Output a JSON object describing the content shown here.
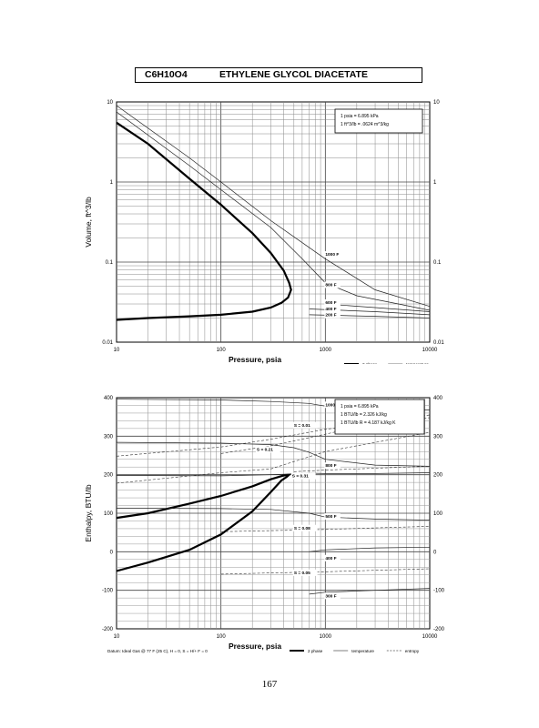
{
  "page": {
    "formula": "C6H10O4",
    "compound": "ETHYLENE GLYCOL DIACETATE",
    "page_number": "167"
  },
  "chart_data": [
    {
      "type": "line",
      "xlabel": "Pressure,  psia",
      "ylabel": "Volume, ft^3/lb",
      "xscale": "log",
      "yscale": "log",
      "xlim": [
        10,
        10000
      ],
      "ylim": [
        0.01,
        10
      ],
      "x_ticks": [
        "10",
        "100",
        "1000",
        "10000"
      ],
      "y_ticks": [
        "0.01",
        "0.1",
        "1",
        "10"
      ],
      "grid": true,
      "notes": [
        "1 psia = 6.895 kPa",
        "1 ft^3/lb = .0624 m^3/kg"
      ],
      "legend": [
        {
          "label": "2 phase",
          "style": "thick"
        },
        {
          "label": "temperature",
          "style": "thin"
        }
      ],
      "series": [
        {
          "kind": "2 phase",
          "x": [
            10,
            20,
            50,
            100,
            200,
            300,
            400,
            450,
            470,
            440,
            380,
            300,
            200,
            100,
            50,
            20,
            10
          ],
          "y": [
            5.5,
            3.0,
            1.1,
            0.52,
            0.23,
            0.13,
            0.078,
            0.055,
            0.045,
            0.036,
            0.031,
            0.027,
            0.024,
            0.022,
            0.021,
            0.02,
            0.019
          ]
        },
        {
          "name": "1000 F",
          "x": [
            10,
            50,
            100,
            300,
            1000,
            3000,
            10000
          ],
          "y": [
            9.0,
            2.0,
            1.0,
            0.33,
            0.11,
            0.045,
            0.028
          ]
        },
        {
          "name": "800 F",
          "x": [
            10,
            50,
            100,
            300,
            600,
            1000,
            2000,
            5000,
            10000
          ],
          "y": [
            7.5,
            1.6,
            0.8,
            0.27,
            0.11,
            0.055,
            0.038,
            0.03,
            0.025
          ]
        },
        {
          "name": "600 F",
          "x": [
            1000,
            3000,
            10000
          ],
          "y": [
            0.03,
            0.027,
            0.024
          ]
        },
        {
          "name": "400 F",
          "x": [
            700,
            3000,
            10000
          ],
          "y": [
            0.026,
            0.024,
            0.022
          ]
        },
        {
          "name": "200 F",
          "x": [
            700,
            3000,
            10000
          ],
          "y": [
            0.022,
            0.021,
            0.02
          ]
        }
      ],
      "annotations": [
        {
          "text": "1000 F",
          "x": 1000,
          "y": 0.12
        },
        {
          "text": "800 F",
          "x": 1000,
          "y": 0.05
        },
        {
          "text": "600 F",
          "x": 1000,
          "y": 0.03
        },
        {
          "text": "400 F",
          "x": 1000,
          "y": 0.025
        },
        {
          "text": "200 F",
          "x": 1000,
          "y": 0.021
        }
      ]
    },
    {
      "type": "line",
      "xlabel": "Pressure,  psia",
      "ylabel": "Enthalpy, BTU/lb",
      "xscale": "log",
      "xlim": [
        10,
        10000
      ],
      "ylim": [
        -200,
        400
      ],
      "x_ticks": [
        "10",
        "100",
        "1000",
        "10000"
      ],
      "y_ticks": [
        "-200",
        "-100",
        "0",
        "100",
        "200",
        "300",
        "400"
      ],
      "grid": true,
      "notes": [
        "1 psia = 6.895 kPa",
        "1 BTU/lb = 2.326 kJ/kg",
        "1 BTU/lb R = 4.187 kJ/kg K"
      ],
      "datum": "Datum: Ideal Gas @ 77 F (25 C), H = 0, S = H/+ F = 0",
      "legend": [
        {
          "label": "2 phase",
          "style": "thick"
        },
        {
          "label": "temperature",
          "style": "thin"
        },
        {
          "label": "entropy",
          "style": "dashed"
        }
      ],
      "series": [
        {
          "kind": "2 phase",
          "x": [
            10,
            20,
            50,
            100,
            200,
            300,
            400,
            450,
            430,
            380,
            300,
            200,
            100,
            50,
            20,
            10
          ],
          "y": [
            88,
            100,
            125,
            145,
            170,
            188,
            198,
            200,
            195,
            185,
            155,
            105,
            45,
            5,
            -28,
            -50
          ]
        },
        {
          "name": "1000 F",
          "x": [
            10,
            100,
            300,
            700,
            1000,
            3000,
            10000
          ],
          "y": [
            396,
            394,
            390,
            385,
            378,
            372,
            368
          ]
        },
        {
          "name": "800 F",
          "x": [
            10,
            100,
            300,
            500,
            700,
            1000,
            3000,
            10000
          ],
          "y": [
            284,
            282,
            278,
            270,
            258,
            240,
            225,
            222
          ]
        },
        {
          "name": "600 F",
          "x": [
            10,
            100,
            300,
            700,
            1000,
            3000,
            10000
          ],
          "y": [
            198,
            197,
            200,
            204,
            203,
            203,
            205
          ]
        },
        {
          "name": "500 F",
          "x": [
            10,
            100,
            300,
            700,
            1000,
            3000,
            10000
          ],
          "y": [
            113,
            112,
            110,
            100,
            90,
            85,
            82
          ]
        },
        {
          "name": "400 F",
          "x": [
            700,
            1000,
            3000,
            10000
          ],
          "y": [
            0,
            5,
            10,
            12
          ]
        },
        {
          "name": "300 F",
          "x": [
            700,
            1000,
            3000,
            10000
          ],
          "y": [
            -110,
            -105,
            -100,
            -95
          ]
        },
        {
          "name": "S=0.31",
          "x": [
            500,
            1000,
            3000,
            10000
          ],
          "y": [
            208,
            212,
            217,
            222
          ]
        },
        {
          "name": "S=0.21",
          "x": [
            100,
            300,
            1000,
            3000,
            10000
          ],
          "y": [
            255,
            275,
            305,
            335,
            355
          ]
        },
        {
          "name": "S=0.11",
          "x": [
            10,
            100,
            300,
            1000,
            10000
          ],
          "y": [
            178,
            205,
            215,
            260,
            310
          ]
        },
        {
          "name": "S=0.01",
          "x": [
            10,
            100,
            300,
            1000,
            10000
          ],
          "y": [
            248,
            272,
            292,
            318,
            348
          ]
        },
        {
          "name": "S=0.08",
          "x": [
            100,
            300,
            1000,
            3000,
            10000
          ],
          "y": [
            52,
            55,
            58,
            62,
            66
          ]
        },
        {
          "name": "S=0.05",
          "x": [
            100,
            300,
            1000,
            3000,
            10000
          ],
          "y": [
            -58,
            -55,
            -52,
            -48,
            -44
          ]
        }
      ],
      "annotations": [
        {
          "text": "1000 F",
          "x": 1000,
          "y": 378
        },
        {
          "text": "S = 0.01",
          "x": 500,
          "y": 325
        },
        {
          "text": "S = 0.21",
          "x": 220,
          "y": 262
        },
        {
          "text": "800 F",
          "x": 1000,
          "y": 220
        },
        {
          "text": "S = 0.31",
          "x": 480,
          "y": 193
        },
        {
          "text": "500 F",
          "x": 1000,
          "y": 88
        },
        {
          "text": "S = 0.08",
          "x": 500,
          "y": 58
        },
        {
          "text": "400 F",
          "x": 1000,
          "y": -20
        },
        {
          "text": "S = 0.05",
          "x": 500,
          "y": -58
        },
        {
          "text": "300 F",
          "x": 1000,
          "y": -118
        }
      ]
    }
  ]
}
